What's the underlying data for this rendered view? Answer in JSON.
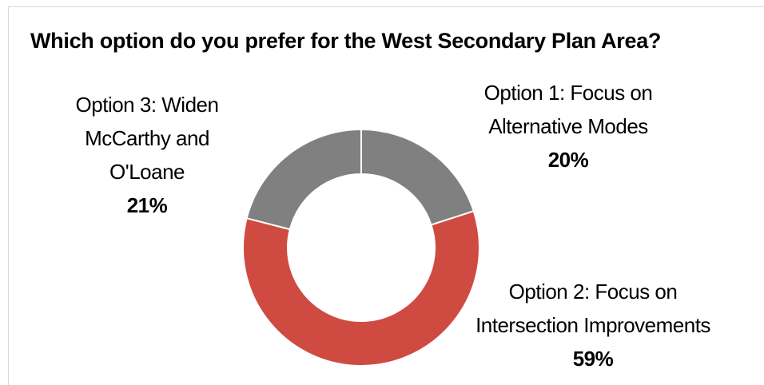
{
  "chart_data": {
    "type": "pie",
    "title": "Which option do you prefer for the West Secondary Plan Area?",
    "donut": true,
    "categories": [
      "Option 1: Focus on Alternative Modes",
      "Option 2: Focus on Intersection Improvements",
      "Option 3: Widen McCarthy and O'Loane"
    ],
    "values": [
      20,
      59,
      21
    ],
    "data_labels": [
      "20%",
      "59%",
      "21%"
    ],
    "colors": [
      "#808080",
      "#cf4b42",
      "#808080"
    ],
    "label_lines": [
      [
        "Option 1: Focus on",
        "Alternative Modes"
      ],
      [
        "Option 2: Focus on",
        "Intersection Improvements"
      ],
      [
        "Option 3: Widen",
        "McCarthy and",
        "O'Loane"
      ]
    ]
  }
}
